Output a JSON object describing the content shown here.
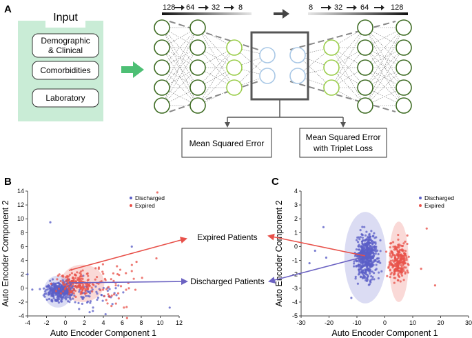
{
  "panels": {
    "a": "A",
    "b": "B",
    "c": "C"
  },
  "input": {
    "title": "Input",
    "items": [
      "Demographic",
      "& Clinical",
      "Comorbidities",
      "Laboratory"
    ]
  },
  "dims": {
    "encoder": [
      "128",
      "64",
      "32",
      "8"
    ],
    "decoder": [
      "8",
      "32",
      "64",
      "128"
    ]
  },
  "losses": {
    "mse": "Mean Squared Error",
    "triplet_1": "Mean Squared Error",
    "triplet_2": "with Triplet Loss"
  },
  "callouts": {
    "expired": "Expired Patients",
    "discharged": "Discharged Patients"
  },
  "colors": {
    "discharged": "#5b5fc7",
    "expired": "#e8514a",
    "input_bg": "#c9ecd6",
    "node_dark": "#3d6b22",
    "node_light": "#9acd4a",
    "node_code": "#a9c8e6"
  },
  "chart_data": [
    {
      "type": "scatter",
      "panel": "B",
      "xlabel": "Auto Encoder Component 1",
      "ylabel": "Auto Encoder Component 2",
      "xlim": [
        -4,
        12
      ],
      "ylim": [
        -4,
        14
      ],
      "xticks": [
        "-4",
        "-2",
        "0",
        "2",
        "4",
        "6",
        "8",
        "10",
        "12"
      ],
      "yticks": [
        "-4",
        "-2",
        "0",
        "2",
        "4",
        "6",
        "8",
        "10",
        "12",
        "14"
      ],
      "legend": [
        "Discharged",
        "Expired"
      ],
      "legend_position": "top-right"
    },
    {
      "type": "scatter",
      "panel": "C",
      "xlabel": "Auto Encoder Component 1",
      "ylabel": "Auto Encoder Component 2",
      "xlim": [
        -30,
        30
      ],
      "ylim": [
        -5,
        4
      ],
      "xticks": [
        "-30",
        "-20",
        "-10",
        "0",
        "10",
        "20",
        "30"
      ],
      "yticks": [
        "-5",
        "-4",
        "-3",
        "-2",
        "-1",
        "0",
        "1",
        "2",
        "3",
        "4"
      ],
      "legend": [
        "Discharged",
        "Expired"
      ],
      "legend_position": "top-right"
    }
  ]
}
